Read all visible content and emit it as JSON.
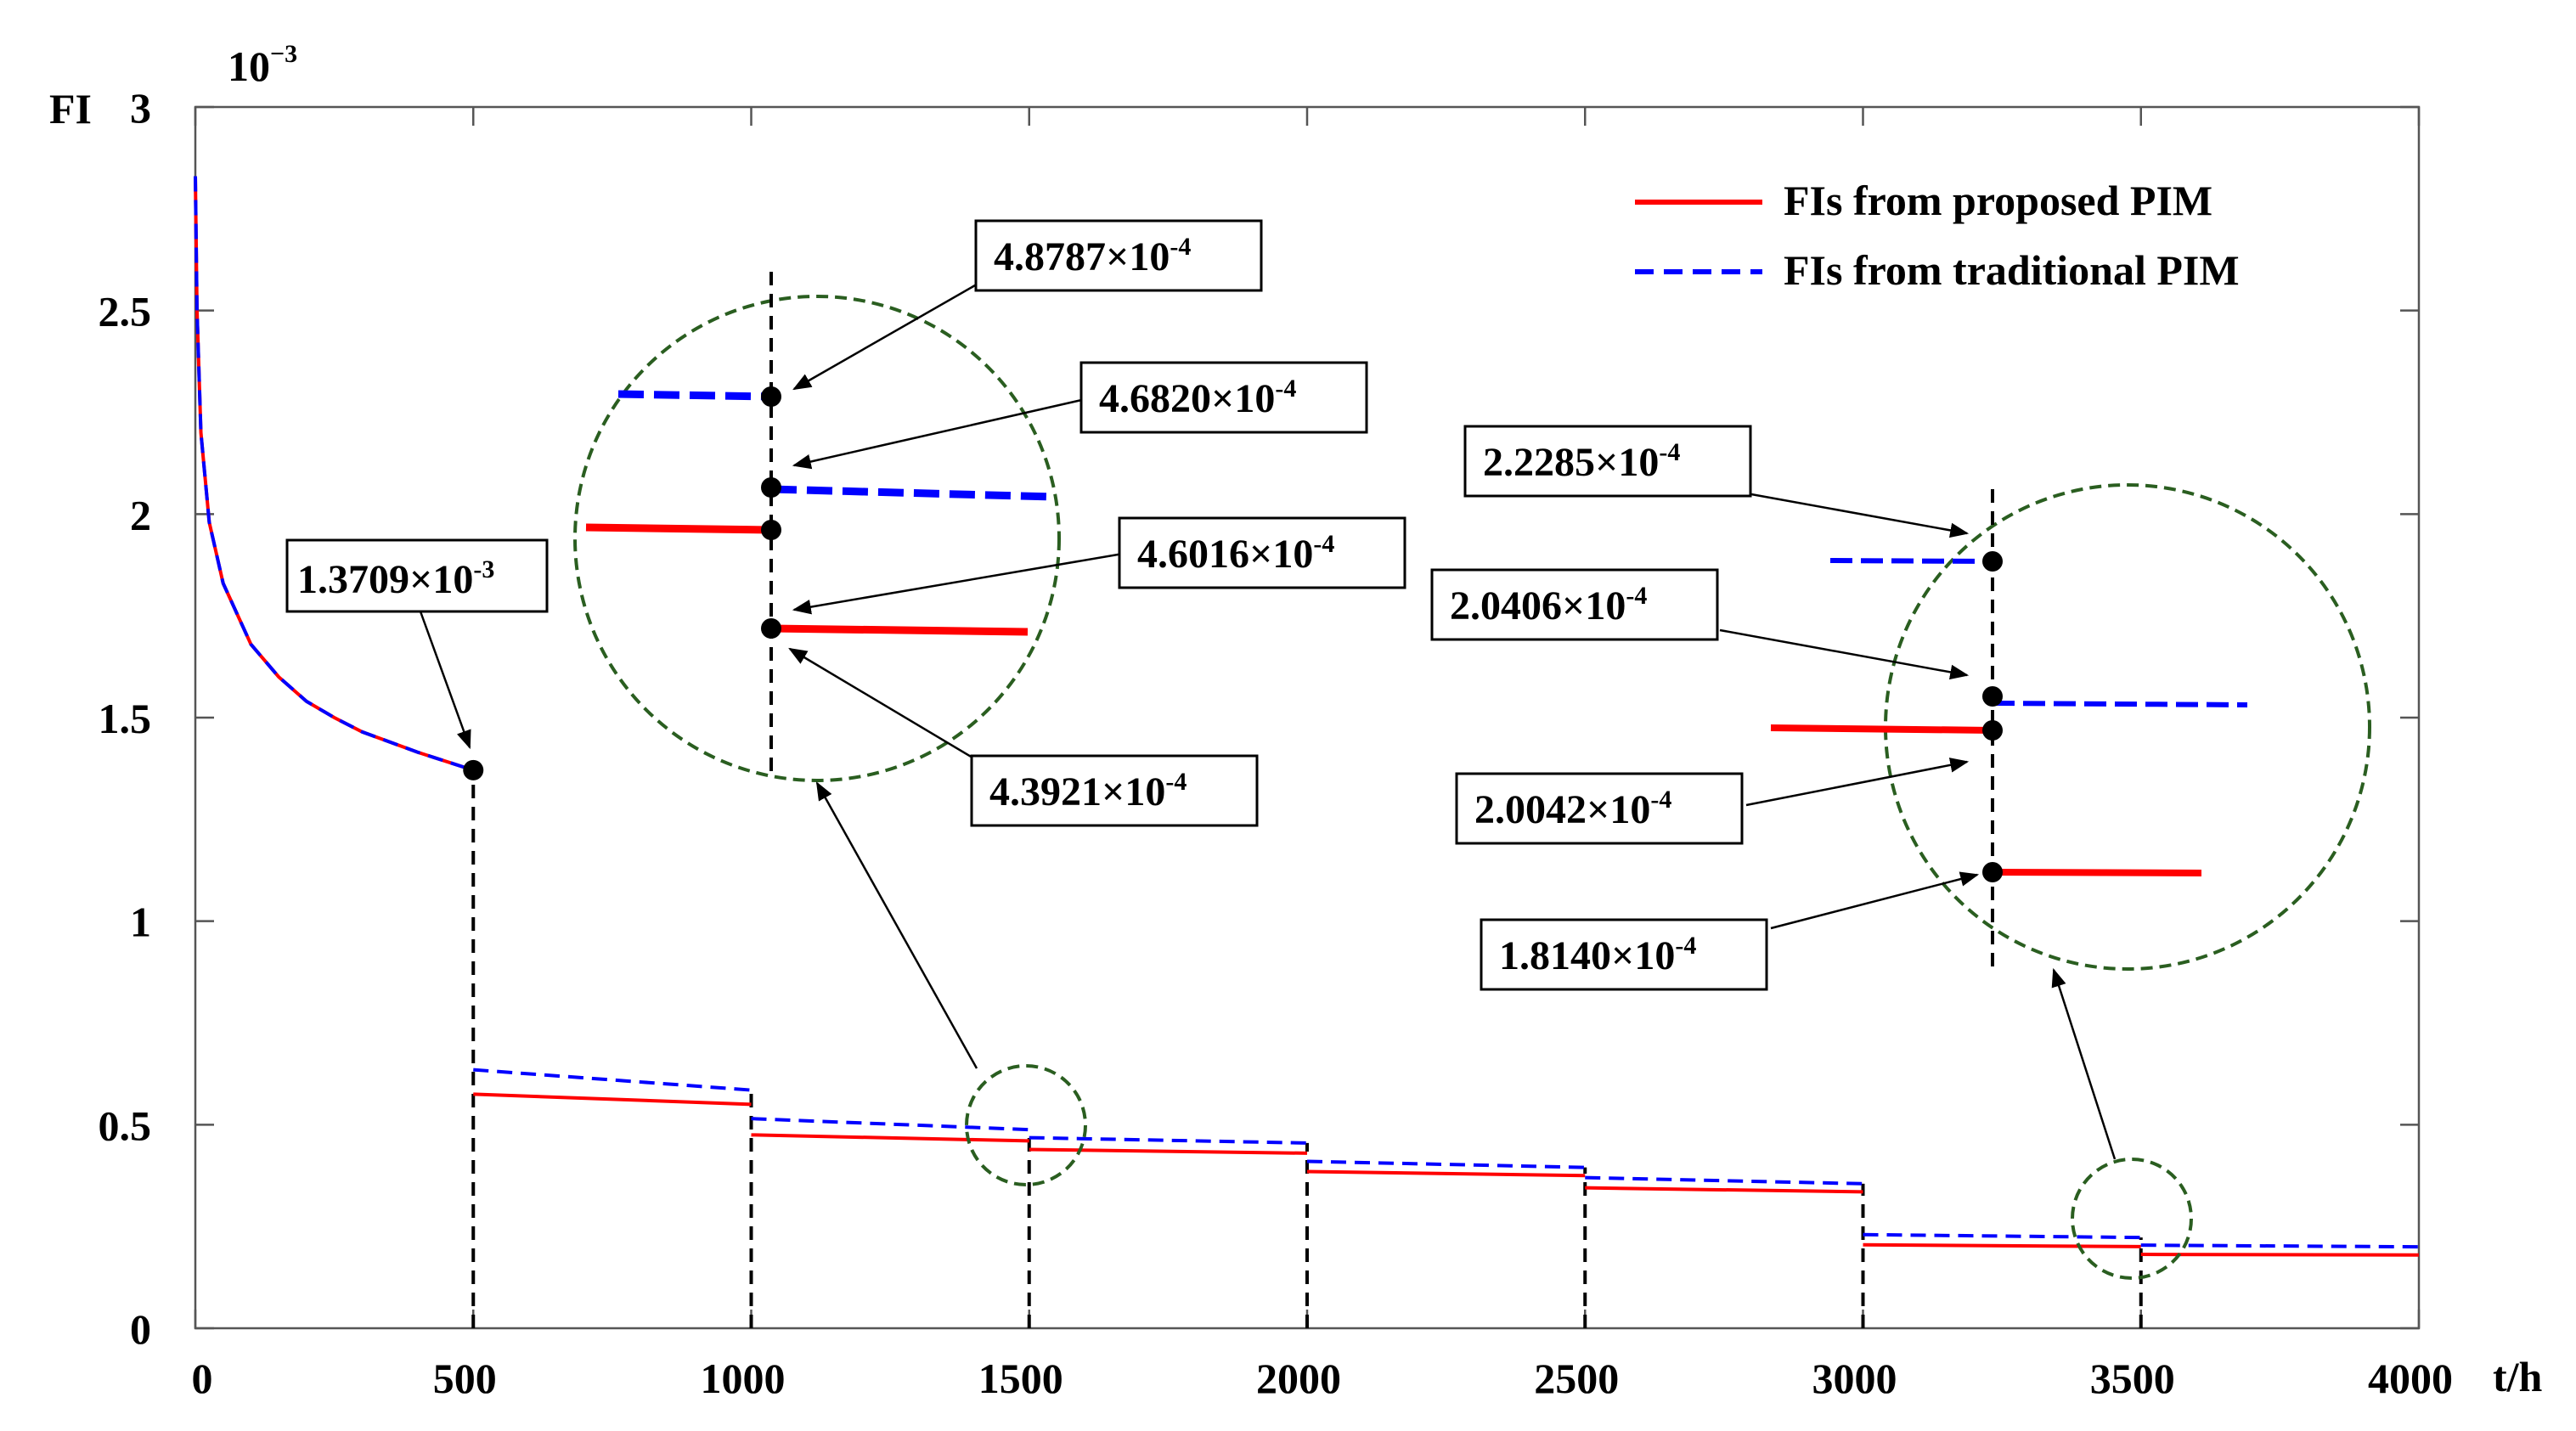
{
  "chart_data": {
    "type": "line",
    "ylabel": "FI",
    "xlabel": "t/h",
    "y_multiplier": "10",
    "y_multiplier_exp": "−3",
    "xlim": [
      0,
      4000
    ],
    "ylim": [
      0,
      3
    ],
    "x_ticks": [
      "0",
      "500",
      "1000",
      "1500",
      "2000",
      "2500",
      "3000",
      "3500",
      "4000"
    ],
    "y_ticks": [
      "0",
      "0.5",
      "1",
      "1.5",
      "2",
      "2.5",
      "3"
    ],
    "grid": false,
    "legend_position": "top-right",
    "series": [
      {
        "name": "FIs from proposed PIM",
        "color": "#ff0000",
        "style": "solid",
        "segments": [
          {
            "x": [
              0,
              3,
              10,
              25,
              50,
              100,
              150,
              200,
              250,
              300,
              400,
              500
            ],
            "y": [
              2.83,
              2.5,
              2.2,
              1.98,
              1.83,
              1.68,
              1.6,
              1.54,
              1.5,
              1.465,
              1.415,
              1.3709
            ]
          },
          {
            "x": [
              500,
              1000
            ],
            "y": [
              0.575,
              0.55
            ]
          },
          {
            "x": [
              1000,
              1500
            ],
            "y": [
              0.475,
              0.46016
            ]
          },
          {
            "x": [
              1500,
              2000
            ],
            "y": [
              0.43921,
              0.43
            ]
          },
          {
            "x": [
              2000,
              2500
            ],
            "y": [
              0.385,
              0.375
            ]
          },
          {
            "x": [
              2500,
              3000
            ],
            "y": [
              0.345,
              0.335
            ]
          },
          {
            "x": [
              3000,
              3500
            ],
            "y": [
              0.205,
              0.20042
            ]
          },
          {
            "x": [
              3500,
              4000
            ],
            "y": [
              0.1814,
              0.18
            ]
          }
        ]
      },
      {
        "name": "FIs from traditional PIM",
        "color": "#0000ff",
        "style": "dashed",
        "segments": [
          {
            "x": [
              0,
              3,
              10,
              25,
              50,
              100,
              150,
              200,
              250,
              300,
              400,
              500
            ],
            "y": [
              2.83,
              2.5,
              2.2,
              1.98,
              1.83,
              1.68,
              1.6,
              1.54,
              1.5,
              1.465,
              1.415,
              1.3709
            ]
          },
          {
            "x": [
              500,
              1000
            ],
            "y": [
              0.635,
              0.585
            ]
          },
          {
            "x": [
              1000,
              1500
            ],
            "y": [
              0.515,
              0.48787
            ]
          },
          {
            "x": [
              1500,
              2000
            ],
            "y": [
              0.4682,
              0.455
            ]
          },
          {
            "x": [
              2000,
              2500
            ],
            "y": [
              0.41,
              0.395
            ]
          },
          {
            "x": [
              2500,
              3000
            ],
            "y": [
              0.37,
              0.355
            ]
          },
          {
            "x": [
              3000,
              3500
            ],
            "y": [
              0.23,
              0.22285
            ]
          },
          {
            "x": [
              3500,
              4000
            ],
            "y": [
              0.20406,
              0.2
            ]
          }
        ]
      }
    ],
    "annotations": [
      {
        "mantissa": "1.3709×10",
        "exp": "-3"
      },
      {
        "mantissa": "4.8787×10",
        "exp": "-4"
      },
      {
        "mantissa": "4.6820×10",
        "exp": "-4"
      },
      {
        "mantissa": "4.6016×10",
        "exp": "-4"
      },
      {
        "mantissa": "4.3921×10",
        "exp": "-4"
      },
      {
        "mantissa": "2.2285×10",
        "exp": "-4"
      },
      {
        "mantissa": "2.0406×10",
        "exp": "-4"
      },
      {
        "mantissa": "2.0042×10",
        "exp": "-4"
      },
      {
        "mantissa": "1.8140×10",
        "exp": "-4"
      }
    ]
  }
}
